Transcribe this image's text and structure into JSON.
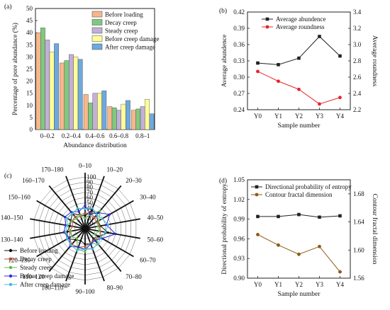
{
  "chart_data": [
    {
      "panel": "(a)",
      "type": "bar",
      "ylabel": "Percentage of pore abundance (%)",
      "xlabel": "Abundance distribution",
      "ylim": [
        0,
        50
      ],
      "yticks": [
        0,
        5,
        10,
        15,
        20,
        25,
        30,
        35,
        40,
        45,
        50
      ],
      "categories": [
        "0–0.2",
        "0.2–0.4",
        "0.4–0.6",
        "0.6–0.8",
        "0.8–1"
      ],
      "series": [
        {
          "name": "Before loading",
          "color": "#f5b88c",
          "values": [
            40,
            27.5,
            14.5,
            9.5,
            8
          ]
        },
        {
          "name": "Decay creep",
          "color": "#7fc97f",
          "values": [
            42,
            28.5,
            11,
            9,
            8.5
          ]
        },
        {
          "name": "Steady creep",
          "color": "#c2b0d8",
          "values": [
            37,
            31,
            15,
            8,
            9.5
          ]
        },
        {
          "name": "Before creep damage",
          "color": "#ffff99",
          "values": [
            32,
            30,
            15,
            10.5,
            12.5
          ]
        },
        {
          "name": "After creep damage",
          "color": "#6fa8dc",
          "values": [
            35.5,
            29,
            16,
            12,
            6.5
          ]
        }
      ],
      "legend": "top-right"
    },
    {
      "panel": "(b)",
      "type": "line",
      "x": [
        "Y0",
        "Y1",
        "Y2",
        "Y3",
        "Y4"
      ],
      "xlabel": "Sample number",
      "ylabel": "Average abundence",
      "ylabel2": "Average roundness",
      "ylim": [
        0.24,
        0.42
      ],
      "yticks": [
        "0.24",
        "0.27",
        "0.30",
        "0.33",
        "0.36",
        "0.39",
        "0.42"
      ],
      "ylim2": [
        2.2,
        3.4
      ],
      "yticks2": [
        "2.2",
        "2.4",
        "2.6",
        "2.8",
        "3.0",
        "3.2",
        "3.4"
      ],
      "series": [
        {
          "name": "Average abundence",
          "axis": "left",
          "color": "#222222",
          "marker": "square",
          "values": [
            0.326,
            0.323,
            0.335,
            0.375,
            0.339
          ]
        },
        {
          "name": "Average roundness",
          "axis": "right",
          "color": "#e8242a",
          "marker": "circle",
          "values": [
            2.67,
            2.55,
            2.45,
            2.27,
            2.35
          ]
        }
      ],
      "legend": "top-left"
    },
    {
      "panel": "(c)",
      "type": "radar",
      "categories": [
        "0–10",
        "10–20",
        "20–30",
        "30–40",
        "40–50",
        "50–60",
        "60–70",
        "70–80",
        "80–90",
        "90–100",
        "100–110",
        "110–120",
        "120–130",
        "130–140",
        "140–150",
        "150–160",
        "160–170",
        "170–180"
      ],
      "rlim": [
        0,
        100
      ],
      "rticks": [
        "0",
        "10",
        "20",
        "30",
        "40",
        "50",
        "60",
        "70",
        "80",
        "90",
        "100"
      ],
      "series": [
        {
          "name": "Before loading",
          "color": "#111111",
          "values": [
            25,
            38,
            35,
            28,
            30,
            45,
            30,
            25,
            32,
            30,
            25,
            28,
            40,
            35,
            30,
            32,
            38,
            28
          ]
        },
        {
          "name": "Decay creep",
          "color": "#b0503a",
          "values": [
            30,
            32,
            28,
            25,
            28,
            30,
            35,
            28,
            30,
            35,
            38,
            40,
            35,
            30,
            25,
            28,
            30,
            25
          ]
        },
        {
          "name": "Steady creep",
          "color": "#5cb84a",
          "values": [
            20,
            28,
            45,
            30,
            25,
            28,
            22,
            40,
            30,
            45,
            42,
            25,
            30,
            28,
            35,
            30,
            25,
            28
          ]
        },
        {
          "name": "Before creep damage",
          "color": "#2b2bd6",
          "values": [
            45,
            30,
            40,
            55,
            42,
            60,
            38,
            30,
            32,
            40,
            38,
            45,
            35,
            42,
            38,
            45,
            42,
            35
          ]
        },
        {
          "name": "After creep damage",
          "color": "#46b8d8",
          "values": [
            38,
            42,
            35,
            38,
            45,
            40,
            35,
            38,
            42,
            40,
            45,
            42,
            40,
            38,
            35,
            40,
            38,
            42
          ]
        }
      ],
      "legend": "bottom-left"
    },
    {
      "panel": "(d)",
      "type": "line",
      "x": [
        "Y0",
        "Y1",
        "Y2",
        "Y3",
        "Y4"
      ],
      "xlabel": "Sample number",
      "ylabel": "Directional probability of entropy",
      "ylabel2": "Contour fractal dimension",
      "ylim": [
        0.9,
        1.05
      ],
      "yticks": [
        "0.90",
        "0.93",
        "0.96",
        "0.99",
        "1.02",
        "1.05"
      ],
      "ylim2": [
        1.56,
        1.7
      ],
      "yticks2": [
        "1.56",
        "1.60",
        "1.64",
        "1.68"
      ],
      "series": [
        {
          "name": "Directional probability of entropy",
          "axis": "left",
          "color": "#222222",
          "marker": "square",
          "values": [
            0.994,
            0.994,
            0.997,
            0.993,
            0.995
          ]
        },
        {
          "name": "Contour fractal dimension",
          "axis": "right",
          "color": "#8b5a1a",
          "marker": "circle",
          "values": [
            1.622,
            1.607,
            1.594,
            1.605,
            1.569
          ]
        }
      ],
      "legend": "top-left"
    }
  ]
}
